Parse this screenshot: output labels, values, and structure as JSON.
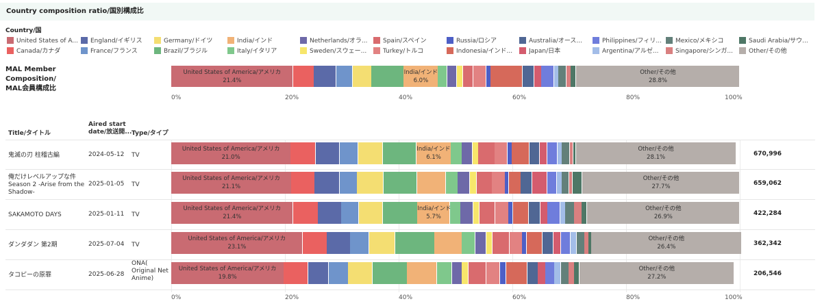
{
  "page_title": "Country composition ratio/国別構成比",
  "legend": {
    "title": "Country/国",
    "items": [
      {
        "label": "United States of A...",
        "color": "#c96b72"
      },
      {
        "label": "England/イギリス",
        "color": "#5b6aa8"
      },
      {
        "label": "Germany/ドイツ",
        "color": "#f4de72"
      },
      {
        "label": "India/インド",
        "color": "#f1b277"
      },
      {
        "label": "Netherlands/オラ...",
        "color": "#6e69a8"
      },
      {
        "label": "Spain/スペイン",
        "color": "#d96b6e"
      },
      {
        "label": "Russia/ロシア",
        "color": "#4d5fc6"
      },
      {
        "label": "Australia/オース...",
        "color": "#506794"
      },
      {
        "label": "Philippines/フィリ...",
        "color": "#6f7ddc"
      },
      {
        "label": "Mexico/メキシコ",
        "color": "#63807a"
      },
      {
        "label": "Saudi Arabia/サウ...",
        "color": "#4e7766"
      },
      {
        "label": "Canada/カナダ",
        "color": "#ea6160"
      },
      {
        "label": "France/フランス",
        "color": "#6f94cb"
      },
      {
        "label": "Brazil/ブラジル",
        "color": "#6db67e"
      },
      {
        "label": "Italy/イタリア",
        "color": "#7fc88c"
      },
      {
        "label": "Sweden/スウェー...",
        "color": "#f7e66b"
      },
      {
        "label": "Turkey/トルコ",
        "color": "#e28282"
      },
      {
        "label": "Indonesia/インド...",
        "color": "#d6695a"
      },
      {
        "label": "Japan/日本",
        "color": "#d45c6e"
      },
      {
        "label": "Argentina/アルゼ...",
        "color": "#a3bde8"
      },
      {
        "label": "Singapore/シンガ...",
        "color": "#d98080"
      },
      {
        "label": "Other/その他",
        "color": "#b5aeaa"
      }
    ]
  },
  "headers": {
    "title": "Title/タイトル",
    "aired_l1": "Aired start",
    "aired_l2": "date/放送開...",
    "type": "Type/タイプ"
  },
  "chart_data": {
    "type": "bar",
    "stacked": true,
    "orientation": "horizontal",
    "xlim": [
      0,
      100
    ],
    "x_ticks": [
      "0%",
      "20%",
      "40%",
      "60%",
      "80%",
      "100%"
    ],
    "mal": {
      "label_l1": "MAL Member Composition/",
      "label_l2": "MAL会員構成比",
      "segments": [
        {
          "country": "United States of America/アメリカ",
          "value": 21.4,
          "label": "United States of America/アメリカ",
          "value_text": "21.4%",
          "color": "#c96b72"
        },
        {
          "country": "Canada",
          "value": 3.7,
          "color": "#ea6160"
        },
        {
          "country": "England",
          "value": 3.9,
          "color": "#5b6aa8"
        },
        {
          "country": "France",
          "value": 2.9,
          "color": "#6f94cb"
        },
        {
          "country": "Germany",
          "value": 3.3,
          "color": "#f4de72"
        },
        {
          "country": "Brazil",
          "value": 5.7,
          "color": "#6db67e"
        },
        {
          "country": "India/インド",
          "value": 6.0,
          "label": "India/インド",
          "value_text": "6.0%",
          "color": "#f1b277"
        },
        {
          "country": "Italy",
          "value": 1.6,
          "color": "#7fc88c"
        },
        {
          "country": "Netherlands",
          "value": 1.7,
          "color": "#6e69a8"
        },
        {
          "country": "Sweden",
          "value": 1.1,
          "color": "#f7e66b"
        },
        {
          "country": "Spain",
          "value": 1.8,
          "color": "#d96b6e"
        },
        {
          "country": "Turkey",
          "value": 2.3,
          "color": "#e28282"
        },
        {
          "country": "Russia",
          "value": 0.8,
          "color": "#4d5fc6"
        },
        {
          "country": "Indonesia",
          "value": 5.6,
          "color": "#d6695a"
        },
        {
          "country": "Australia",
          "value": 2.0,
          "color": "#506794"
        },
        {
          "country": "Japan",
          "value": 1.3,
          "color": "#d45c6e"
        },
        {
          "country": "Philippines",
          "value": 2.2,
          "color": "#6f7ddc"
        },
        {
          "country": "Argentina",
          "value": 0.8,
          "color": "#a3bde8"
        },
        {
          "country": "Mexico",
          "value": 1.4,
          "color": "#63807a"
        },
        {
          "country": "Singapore",
          "value": 0.8,
          "color": "#d98080"
        },
        {
          "country": "Saudi Arabia",
          "value": 0.9,
          "color": "#4e7766"
        },
        {
          "country": "Other/その他",
          "value": 28.8,
          "label": "Other/その他",
          "value_text": "28.8%",
          "color": "#b5aeaa"
        }
      ]
    },
    "rows": [
      {
        "title": "鬼滅の刃 柱稽古編",
        "date": "2024-05-12",
        "type": "TV",
        "count": "670,996",
        "segments": [
          {
            "country": "United States of America/アメリカ",
            "value": 21.0,
            "label": "United States of America/アメリカ",
            "value_text": "21.0%",
            "color": "#c96b72"
          },
          {
            "country": "Canada",
            "value": 4.4,
            "color": "#ea6160"
          },
          {
            "country": "England",
            "value": 4.2,
            "color": "#5b6aa8"
          },
          {
            "country": "France",
            "value": 3.3,
            "color": "#6f94cb"
          },
          {
            "country": "Germany",
            "value": 4.3,
            "color": "#f4de72"
          },
          {
            "country": "Brazil",
            "value": 5.9,
            "color": "#6db67e"
          },
          {
            "country": "India/インド",
            "value": 6.1,
            "label": "India/インド",
            "value_text": "6.1%",
            "color": "#f1b277"
          },
          {
            "country": "Italy",
            "value": 1.9,
            "color": "#7fc88c"
          },
          {
            "country": "Netherlands",
            "value": 1.9,
            "color": "#6e69a8"
          },
          {
            "country": "Sweden",
            "value": 1.0,
            "color": "#f7e66b"
          },
          {
            "country": "Spain",
            "value": 2.9,
            "color": "#d96b6e"
          },
          {
            "country": "Turkey",
            "value": 2.2,
            "color": "#e28282"
          },
          {
            "country": "Russia",
            "value": 0.8,
            "color": "#4d5fc6"
          },
          {
            "country": "Indonesia",
            "value": 3.1,
            "color": "#d6695a"
          },
          {
            "country": "Australia",
            "value": 1.8,
            "color": "#506794"
          },
          {
            "country": "Japan",
            "value": 1.3,
            "color": "#d45c6e"
          },
          {
            "country": "Philippines",
            "value": 1.8,
            "color": "#6f7ddc"
          },
          {
            "country": "Argentina",
            "value": 0.8,
            "color": "#a3bde8"
          },
          {
            "country": "Mexico",
            "value": 1.4,
            "color": "#63807a"
          },
          {
            "country": "Singapore",
            "value": 0.6,
            "color": "#d98080"
          },
          {
            "country": "Saudi Arabia",
            "value": 0.5,
            "color": "#4e7766"
          },
          {
            "country": "Other/その他",
            "value": 28.1,
            "label": "Other/その他",
            "value_text": "28.1%",
            "color": "#b5aeaa"
          }
        ]
      },
      {
        "title": "俺だけレベルアップな件 Season 2 -Arise from the Shadow-",
        "date": "2025-01-05",
        "type": "TV",
        "count": "659,062",
        "segments": [
          {
            "country": "United States of America/アメリカ",
            "value": 21.1,
            "label": "United States of America/アメリカ",
            "value_text": "21.1%",
            "color": "#c96b72"
          },
          {
            "country": "Canada",
            "value": 4.1,
            "color": "#ea6160"
          },
          {
            "country": "England",
            "value": 4.4,
            "color": "#5b6aa8"
          },
          {
            "country": "France",
            "value": 3.1,
            "color": "#6f94cb"
          },
          {
            "country": "Germany",
            "value": 4.6,
            "color": "#f4de72"
          },
          {
            "country": "Brazil",
            "value": 5.9,
            "color": "#6db67e"
          },
          {
            "country": "India",
            "value": 5.1,
            "color": "#f1b277"
          },
          {
            "country": "Italy",
            "value": 2.1,
            "color": "#7fc88c"
          },
          {
            "country": "Netherlands",
            "value": 2.1,
            "color": "#6e69a8"
          },
          {
            "country": "Sweden",
            "value": 1.2,
            "color": "#f7e66b"
          },
          {
            "country": "Spain",
            "value": 2.7,
            "color": "#d96b6e"
          },
          {
            "country": "Turkey",
            "value": 2.3,
            "color": "#e28282"
          },
          {
            "country": "Russia",
            "value": 0.7,
            "color": "#4d5fc6"
          },
          {
            "country": "Indonesia",
            "value": 2.1,
            "color": "#d6695a"
          },
          {
            "country": "Australia",
            "value": 2.0,
            "color": "#506794"
          },
          {
            "country": "Japan",
            "value": 2.6,
            "color": "#d45c6e"
          },
          {
            "country": "Philippines",
            "value": 1.7,
            "color": "#6f7ddc"
          },
          {
            "country": "Argentina",
            "value": 0.9,
            "color": "#a3bde8"
          },
          {
            "country": "Mexico",
            "value": 1.3,
            "color": "#63807a"
          },
          {
            "country": "Singapore",
            "value": 0.6,
            "color": "#d98080"
          },
          {
            "country": "Saudi Arabia",
            "value": 1.7,
            "color": "#4e7766"
          },
          {
            "country": "Other/その他",
            "value": 27.7,
            "label": "Other/その他",
            "value_text": "27.7%",
            "color": "#b5aeaa"
          }
        ]
      },
      {
        "title": "SAKAMOTO DAYS",
        "date": "2025-01-11",
        "type": "TV",
        "count": "422,284",
        "segments": [
          {
            "country": "United States of America/アメリカ",
            "value": 21.4,
            "label": "United States of America/アメリカ",
            "value_text": "21.4%",
            "color": "#c96b72"
          },
          {
            "country": "Canada",
            "value": 4.4,
            "color": "#ea6160"
          },
          {
            "country": "England",
            "value": 4.1,
            "color": "#5b6aa8"
          },
          {
            "country": "France",
            "value": 3.1,
            "color": "#6f94cb"
          },
          {
            "country": "Germany",
            "value": 4.2,
            "color": "#f4de72"
          },
          {
            "country": "Brazil",
            "value": 6.1,
            "color": "#6db67e"
          },
          {
            "country": "India/インド",
            "value": 5.7,
            "label": "India/インド",
            "value_text": "5.7%",
            "color": "#f1b277"
          },
          {
            "country": "Italy",
            "value": 1.9,
            "color": "#7fc88c"
          },
          {
            "country": "Netherlands",
            "value": 2.2,
            "color": "#6e69a8"
          },
          {
            "country": "Sweden",
            "value": 1.1,
            "color": "#f7e66b"
          },
          {
            "country": "Spain",
            "value": 2.8,
            "color": "#d96b6e"
          },
          {
            "country": "Turkey",
            "value": 2.3,
            "color": "#e28282"
          },
          {
            "country": "Russia",
            "value": 0.8,
            "color": "#4d5fc6"
          },
          {
            "country": "Indonesia",
            "value": 2.8,
            "color": "#d6695a"
          },
          {
            "country": "Australia",
            "value": 2.0,
            "color": "#506794"
          },
          {
            "country": "Japan",
            "value": 1.3,
            "color": "#d45c6e"
          },
          {
            "country": "Philippines",
            "value": 2.2,
            "color": "#6f7ddc"
          },
          {
            "country": "Argentina",
            "value": 0.9,
            "color": "#a3bde8"
          },
          {
            "country": "Mexico",
            "value": 1.6,
            "color": "#63807a"
          },
          {
            "country": "Singapore",
            "value": 1.3,
            "color": "#d98080"
          },
          {
            "country": "Saudi Arabia",
            "value": 0.9,
            "color": "#4e7766"
          },
          {
            "country": "Other/その他",
            "value": 26.9,
            "label": "Other/その他",
            "value_text": "26.9%",
            "color": "#b5aeaa"
          }
        ]
      },
      {
        "title": "ダンダダン 第2期",
        "date": "2025-07-04",
        "type": "TV",
        "count": "362,342",
        "segments": [
          {
            "country": "United States of America/アメリカ",
            "value": 23.1,
            "label": "United States of America/アメリカ",
            "value_text": "23.1%",
            "color": "#c96b72"
          },
          {
            "country": "Canada",
            "value": 4.3,
            "color": "#ea6160"
          },
          {
            "country": "England",
            "value": 4.1,
            "color": "#5b6aa8"
          },
          {
            "country": "France",
            "value": 3.3,
            "color": "#6f94cb"
          },
          {
            "country": "Germany",
            "value": 4.6,
            "color": "#f4de72"
          },
          {
            "country": "Brazil",
            "value": 6.9,
            "color": "#6db67e"
          },
          {
            "country": "India",
            "value": 4.8,
            "color": "#f1b277"
          },
          {
            "country": "Italy",
            "value": 2.4,
            "color": "#7fc88c"
          },
          {
            "country": "Netherlands",
            "value": 1.9,
            "color": "#6e69a8"
          },
          {
            "country": "Sweden",
            "value": 1.1,
            "color": "#f7e66b"
          },
          {
            "country": "Spain",
            "value": 3.0,
            "color": "#d96b6e"
          },
          {
            "country": "Turkey",
            "value": 2.2,
            "color": "#e28282"
          },
          {
            "country": "Russia",
            "value": 0.8,
            "color": "#4d5fc6"
          },
          {
            "country": "Indonesia",
            "value": 2.8,
            "color": "#d6695a"
          },
          {
            "country": "Australia",
            "value": 1.9,
            "color": "#506794"
          },
          {
            "country": "Japan",
            "value": 1.3,
            "color": "#d45c6e"
          },
          {
            "country": "Philippines",
            "value": 1.7,
            "color": "#6f7ddc"
          },
          {
            "country": "Argentina",
            "value": 1.1,
            "color": "#a3bde8"
          },
          {
            "country": "Mexico",
            "value": 1.4,
            "color": "#63807a"
          },
          {
            "country": "Singapore",
            "value": 0.7,
            "color": "#d98080"
          },
          {
            "country": "Saudi Arabia",
            "value": 0.5,
            "color": "#4e7766"
          },
          {
            "country": "Other/その他",
            "value": 26.4,
            "label": "Other/その他",
            "value_text": "26.4%",
            "color": "#b5aeaa"
          }
        ]
      },
      {
        "title": "タコピーの原罪",
        "date": "2025-06-28",
        "type": "ONA( Original Net Anime)",
        "count": "206,546",
        "segments": [
          {
            "country": "United States of America/アメリカ",
            "value": 19.8,
            "label": "United States of America/アメリカ",
            "value_text": "19.8%",
            "color": "#c96b72"
          },
          {
            "country": "Canada",
            "value": 4.3,
            "color": "#ea6160"
          },
          {
            "country": "England",
            "value": 3.6,
            "color": "#5b6aa8"
          },
          {
            "country": "France",
            "value": 3.4,
            "color": "#6f94cb"
          },
          {
            "country": "Germany",
            "value": 4.3,
            "color": "#f4de72"
          },
          {
            "country": "Brazil",
            "value": 6.1,
            "color": "#6db67e"
          },
          {
            "country": "India",
            "value": 5.2,
            "color": "#f1b277"
          },
          {
            "country": "Italy",
            "value": 2.7,
            "color": "#7fc88c"
          },
          {
            "country": "Netherlands",
            "value": 1.7,
            "color": "#6e69a8"
          },
          {
            "country": "Sweden",
            "value": 1.2,
            "color": "#f7e66b"
          },
          {
            "country": "Spain",
            "value": 3.1,
            "color": "#d96b6e"
          },
          {
            "country": "Turkey",
            "value": 2.4,
            "color": "#e28282"
          },
          {
            "country": "Russia",
            "value": 1.1,
            "color": "#4d5fc6"
          },
          {
            "country": "Indonesia",
            "value": 3.7,
            "color": "#d6695a"
          },
          {
            "country": "Australia",
            "value": 1.9,
            "color": "#506794"
          },
          {
            "country": "Japan",
            "value": 1.3,
            "color": "#d45c6e"
          },
          {
            "country": "Philippines",
            "value": 1.6,
            "color": "#6f7ddc"
          },
          {
            "country": "Argentina",
            "value": 1.1,
            "color": "#a3bde8"
          },
          {
            "country": "Mexico",
            "value": 1.4,
            "color": "#63807a"
          },
          {
            "country": "Singapore",
            "value": 1.0,
            "color": "#d98080"
          },
          {
            "country": "Saudi Arabia",
            "value": 0.9,
            "color": "#4e7766"
          },
          {
            "country": "Other/その他",
            "value": 27.2,
            "label": "Other/その他",
            "value_text": "27.2%",
            "color": "#b5aeaa"
          }
        ]
      }
    ]
  }
}
